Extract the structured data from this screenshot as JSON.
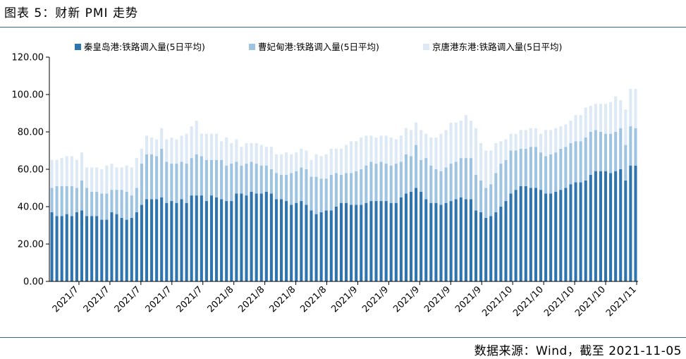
{
  "header": {
    "title": "图表 5：财新 PMI 走势"
  },
  "footer": {
    "source": "数据来源：Wind，截至 2021-11-05"
  },
  "colors": {
    "series1": "#2e75b0",
    "series2": "#9ec4e2",
    "series3": "#dde9f4",
    "rule": "#2f6f98"
  },
  "chart_data": {
    "type": "bar",
    "stacked": true,
    "title": "",
    "xlabel": "",
    "ylabel": "",
    "ylim": [
      0,
      120
    ],
    "yticks": [
      "0.00",
      "20.00",
      "40.00",
      "60.00",
      "80.00",
      "100.00",
      "120.00"
    ],
    "grid": false,
    "legend_position": "top",
    "x_tick_labels": [
      "2021/7",
      "2021/7",
      "2021/7",
      "2021/7",
      "2021/7",
      "2021/8",
      "2021/8",
      "2021/8",
      "2021/8",
      "2021/9",
      "2021/9",
      "2021/9",
      "2021/9",
      "2021/9",
      "2021/10",
      "2021/10",
      "2021/10",
      "2021/10",
      "2021/11"
    ],
    "series": [
      {
        "name": "秦皇岛港:铁路调入量(5日平均)",
        "values": [
          37,
          35,
          35,
          36,
          35,
          37,
          38,
          35,
          35,
          35,
          33,
          33,
          37,
          36,
          34,
          33,
          34,
          37,
          41,
          44,
          44,
          44,
          45,
          42,
          43,
          42,
          44,
          42,
          46,
          46,
          46,
          43,
          46,
          45,
          44,
          43,
          43,
          47,
          47,
          46,
          48,
          47,
          47,
          48,
          47,
          44,
          44,
          43,
          41,
          42,
          43,
          41,
          38,
          36,
          37,
          38,
          38,
          40,
          42,
          42,
          41,
          41,
          41,
          42,
          43,
          43,
          43,
          43,
          42,
          42,
          45,
          47,
          48,
          50,
          48,
          44,
          42,
          42,
          41,
          42,
          43,
          44,
          45,
          44,
          44,
          38,
          37,
          34,
          35,
          37,
          40,
          43,
          47,
          49,
          51,
          51,
          50,
          50,
          49,
          47,
          47,
          48,
          49,
          50,
          52,
          53,
          53,
          54,
          57,
          59,
          59,
          59,
          58,
          59,
          60,
          54,
          62,
          62
        ]
      },
      {
        "name": "曹妃甸港:铁路调入量(5日平均)",
        "values": [
          13,
          16,
          16,
          15,
          16,
          13,
          16,
          15,
          13,
          13,
          14,
          14,
          12,
          13,
          15,
          15,
          12,
          13,
          22,
          24,
          24,
          23,
          26,
          22,
          20,
          21,
          20,
          21,
          20,
          22,
          21,
          22,
          19,
          20,
          21,
          19,
          20,
          17,
          15,
          17,
          16,
          16,
          15,
          14,
          13,
          14,
          13,
          14,
          17,
          17,
          18,
          19,
          18,
          20,
          18,
          17,
          19,
          18,
          15,
          16,
          17,
          18,
          19,
          20,
          21,
          20,
          21,
          20,
          20,
          21,
          19,
          21,
          19,
          23,
          17,
          22,
          20,
          18,
          18,
          19,
          20,
          20,
          21,
          22,
          22,
          19,
          17,
          16,
          17,
          21,
          23,
          22,
          23,
          21,
          20,
          20,
          22,
          22,
          20,
          20,
          21,
          21,
          22,
          22,
          22,
          22,
          22,
          23,
          23,
          22,
          21,
          20,
          21,
          21,
          22,
          19,
          21,
          20
        ]
      },
      {
        "name": "京唐港东港:铁路调入量(5日平均)",
        "values": [
          15,
          14,
          15,
          16,
          16,
          15,
          15,
          11,
          13,
          13,
          13,
          15,
          14,
          12,
          12,
          14,
          15,
          16,
          8,
          10,
          9,
          9,
          11,
          12,
          14,
          13,
          14,
          16,
          17,
          18,
          12,
          14,
          14,
          14,
          10,
          15,
          11,
          12,
          10,
          11,
          10,
          11,
          11,
          10,
          12,
          10,
          11,
          12,
          10,
          10,
          10,
          10,
          9,
          12,
          12,
          13,
          14,
          13,
          14,
          15,
          17,
          16,
          17,
          16,
          14,
          14,
          14,
          15,
          15,
          13,
          14,
          14,
          14,
          12,
          16,
          13,
          15,
          17,
          20,
          20,
          22,
          21,
          20,
          23,
          20,
          25,
          20,
          20,
          18,
          16,
          12,
          11,
          9,
          9,
          10,
          10,
          10,
          10,
          10,
          14,
          13,
          13,
          12,
          12,
          12,
          14,
          14,
          16,
          14,
          14,
          15,
          16,
          17,
          19,
          15,
          19,
          20,
          21
        ]
      }
    ]
  }
}
